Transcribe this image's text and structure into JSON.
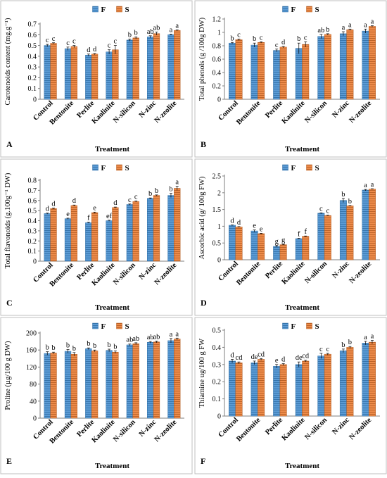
{
  "chart_data": [
    {
      "type": "bar",
      "panel_label": "A",
      "title": "",
      "xlabel": "Treatment",
      "ylabel": "Carotenoids content (mg.g⁻¹)",
      "ylim": [
        0,
        0.7
      ],
      "yticks": [
        "0",
        "0.1",
        "0.2",
        "0.3",
        "0.4",
        "0.5",
        "0.6",
        "0.7"
      ],
      "grid": false,
      "legend": "top",
      "categories": [
        "Control",
        "Bentonite",
        "Perlite",
        "Kaolinite",
        "N-silicon",
        "N-zinc",
        "N-zeolite"
      ],
      "series": [
        {
          "name": "F",
          "values": [
            0.5,
            0.47,
            0.41,
            0.44,
            0.55,
            0.58,
            0.6
          ],
          "errors": [
            0.01,
            0.015,
            0.01,
            0.02,
            0.01,
            0.01,
            0.005
          ],
          "letters": [
            "c",
            "c",
            "d",
            "c",
            "b",
            "ab",
            "a"
          ]
        },
        {
          "name": "S",
          "values": [
            0.52,
            0.49,
            0.42,
            0.46,
            0.57,
            0.61,
            0.64
          ],
          "errors": [
            0.005,
            0.01,
            0.005,
            0.04,
            0.01,
            0.015,
            0.005
          ],
          "letters": [
            "c",
            "c",
            "d",
            "c",
            "b",
            "ab",
            "a"
          ]
        }
      ]
    },
    {
      "type": "bar",
      "panel_label": "B",
      "title": "",
      "xlabel": "Treatment",
      "ylabel": "Total phenols (g /100g DW)",
      "ylim": [
        0,
        1.2
      ],
      "yticks": [
        "0",
        "0.2",
        "0.4",
        "0.6",
        "0.8",
        "1",
        "1.2"
      ],
      "grid": false,
      "legend": "top",
      "categories": [
        "Control",
        "Bentonite",
        "Perlite",
        "Kaolinite",
        "N-silicon",
        "N-zinc",
        "N-zeolite"
      ],
      "series": [
        {
          "name": "F",
          "values": [
            0.84,
            0.81,
            0.73,
            0.76,
            0.94,
            0.98,
            1.02
          ],
          "errors": [
            0.01,
            0.03,
            0.02,
            0.08,
            0.03,
            0.03,
            0.03
          ],
          "letters": [
            "b",
            "b",
            "c",
            "b",
            "ab",
            "a",
            "a"
          ]
        },
        {
          "name": "S",
          "values": [
            0.89,
            0.85,
            0.78,
            0.82,
            0.97,
            1.04,
            1.09
          ],
          "errors": [
            0.01,
            0.01,
            0.01,
            0.04,
            0.01,
            0.01,
            0.01
          ],
          "letters": [
            "c",
            "c",
            "d",
            "c",
            "b",
            "a",
            "a"
          ]
        }
      ]
    },
    {
      "type": "bar",
      "panel_label": "C",
      "title": "",
      "xlabel": "Treatment",
      "ylabel": "Total flavonoids (g.100g⁻¹ DW)",
      "ylim": [
        0,
        0.8
      ],
      "yticks": [
        "0",
        "0.1",
        "0.2",
        "0.3",
        "0.4",
        "0.5",
        "0.6",
        "0.7",
        "0.8"
      ],
      "grid": false,
      "legend": "top",
      "categories": [
        "Control",
        "Bentonite",
        "Perlite",
        "Kaolinite",
        "N-silicon",
        "N-zinc",
        "N-zeolite"
      ],
      "series": [
        {
          "name": "F",
          "values": [
            0.47,
            0.42,
            0.38,
            0.4,
            0.56,
            0.62,
            0.65
          ],
          "errors": [
            0.005,
            0.005,
            0.005,
            0.005,
            0.005,
            0.005,
            0.02
          ],
          "letters": [
            "d",
            "e",
            "f",
            "ef",
            "c",
            "b",
            "b"
          ]
        },
        {
          "name": "S",
          "values": [
            0.52,
            0.55,
            0.48,
            0.53,
            0.59,
            0.65,
            0.72
          ],
          "errors": [
            0.005,
            0.005,
            0.005,
            0.005,
            0.005,
            0.005,
            0.02
          ],
          "letters": [
            "d",
            "d",
            "e",
            "d",
            "c",
            "b",
            "a"
          ]
        }
      ]
    },
    {
      "type": "bar",
      "panel_label": "D",
      "title": "",
      "xlabel": "Treatment",
      "ylabel": "Ascorbic acid (g/ 100g FW)",
      "ylim": [
        0,
        2.5
      ],
      "yticks": [
        "0",
        "0.5",
        "1",
        "1.5",
        "2",
        "2.5"
      ],
      "grid": false,
      "legend": "top",
      "categories": [
        "Control",
        "Bentonite",
        "Perlite",
        "Kaolinite",
        "N-silicon",
        "N-zinc",
        "N-zeolite"
      ],
      "series": [
        {
          "name": "F",
          "values": [
            1.03,
            0.86,
            0.4,
            0.63,
            1.39,
            1.77,
            2.08
          ],
          "errors": [
            0.01,
            0.03,
            0.02,
            0.01,
            0.01,
            0.06,
            0.02
          ],
          "letters": [
            "d",
            "e",
            "g",
            "f",
            "c",
            "b",
            "a"
          ]
        },
        {
          "name": "S",
          "values": [
            0.98,
            0.78,
            0.45,
            0.7,
            1.32,
            1.61,
            2.11
          ],
          "errors": [
            0.01,
            0.01,
            0.01,
            0.01,
            0.01,
            0.01,
            0.01
          ],
          "letters": [
            "d",
            "e",
            "g",
            "f",
            "c",
            "b",
            "a"
          ]
        }
      ]
    },
    {
      "type": "bar",
      "panel_label": "E",
      "title": "",
      "xlabel": "Treatment",
      "ylabel": "Proline (µg/100 g DW)",
      "ylim": [
        0,
        200
      ],
      "yticks": [
        "0",
        "40",
        "80",
        "120",
        "160",
        "200"
      ],
      "grid": false,
      "legend": "top",
      "categories": [
        "Control",
        "Bentonite",
        "Perlite",
        "Kaolinite",
        "N-silicon",
        "N-zinc",
        "N-zeolite"
      ],
      "series": [
        {
          "name": "F",
          "values": [
            152,
            157,
            163,
            159,
            172,
            178,
            182
          ],
          "errors": [
            4,
            4,
            2,
            3,
            2,
            2,
            5
          ],
          "letters": [
            "b",
            "b",
            "b",
            "b",
            "ab",
            "ab",
            "a"
          ]
        },
        {
          "name": "S",
          "values": [
            153,
            150,
            158,
            155,
            175,
            179,
            186
          ],
          "errors": [
            2,
            4,
            2,
            3,
            2,
            2,
            2
          ],
          "letters": [
            "b",
            "b",
            "b",
            "b",
            "ab",
            "ab",
            "a"
          ]
        }
      ]
    },
    {
      "type": "bar",
      "panel_label": "F",
      "title": "",
      "xlabel": "Treatment",
      "ylabel": "Thiamine ug/100 g FW",
      "ylim": [
        0,
        0.5
      ],
      "yticks": [
        "0",
        "0.1",
        "0.2",
        "0.3",
        "0.4",
        "0.5"
      ],
      "grid": false,
      "legend": "top",
      "categories": [
        "Control",
        "Bentonite",
        "Perlite",
        "Kaolinite",
        "N-silicon",
        "N-zinc",
        "N-zeolite"
      ],
      "series": [
        {
          "name": "F",
          "values": [
            0.32,
            0.31,
            0.29,
            0.3,
            0.35,
            0.38,
            0.425
          ],
          "errors": [
            0.01,
            0.01,
            0.01,
            0.015,
            0.015,
            0.01,
            0.01
          ],
          "letters": [
            "d",
            "de",
            "e",
            "de",
            "c",
            "b",
            "a"
          ]
        },
        {
          "name": "S",
          "values": [
            0.31,
            0.33,
            0.3,
            0.32,
            0.36,
            0.4,
            0.43
          ],
          "errors": [
            0.005,
            0.005,
            0.005,
            0.005,
            0.005,
            0.005,
            0.01
          ],
          "letters": [
            "cd",
            "cd",
            "d",
            "cd",
            "c",
            "b",
            "a"
          ]
        }
      ]
    }
  ],
  "colors": {
    "F": "#5b9bd5",
    "S": "#ed8b4a",
    "F_stripe": "#2e6da4",
    "S_stripe": "#b35a1f",
    "frame": "#bfbfbf"
  }
}
